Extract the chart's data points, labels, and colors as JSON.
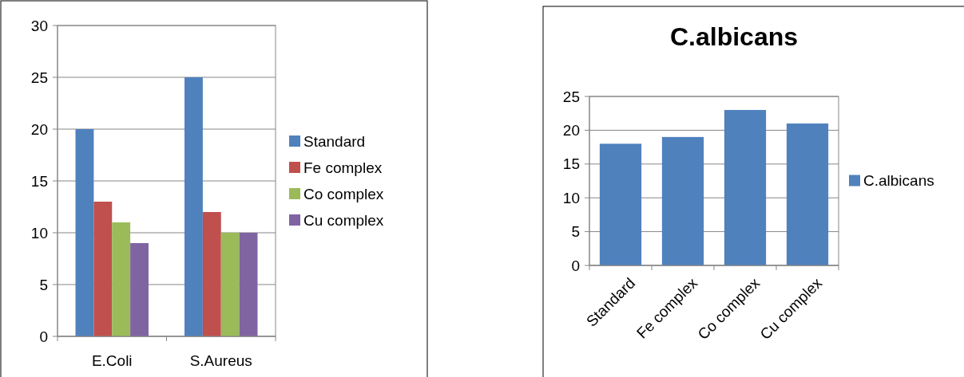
{
  "chart_data": [
    {
      "type": "bar",
      "categories": [
        "E.Coli",
        "S.Aureus"
      ],
      "series": [
        {
          "name": "Standard",
          "color": "#4f81bd",
          "values": [
            20,
            25
          ]
        },
        {
          "name": "Fe complex",
          "color": "#c0504d",
          "values": [
            13,
            12
          ]
        },
        {
          "name": "Co complex",
          "color": "#9bbb59",
          "values": [
            11,
            10
          ]
        },
        {
          "name": "Cu complex",
          "color": "#8064a2",
          "values": [
            9,
            10
          ]
        }
      ],
      "ylim": [
        0,
        30
      ],
      "yticks": [
        0,
        5,
        10,
        15,
        20,
        25,
        30
      ],
      "grid": "y",
      "legend": "right"
    },
    {
      "type": "bar",
      "title": "C.albicans",
      "categories": [
        "Standard",
        "Fe complex",
        "Co complex",
        "Cu complex"
      ],
      "series": [
        {
          "name": "C.albicans",
          "color": "#4f81bd",
          "values": [
            18,
            19,
            23,
            21
          ]
        }
      ],
      "ylim": [
        0,
        25
      ],
      "yticks": [
        0,
        5,
        10,
        15,
        20,
        25
      ],
      "grid": "y",
      "legend": "right"
    }
  ]
}
